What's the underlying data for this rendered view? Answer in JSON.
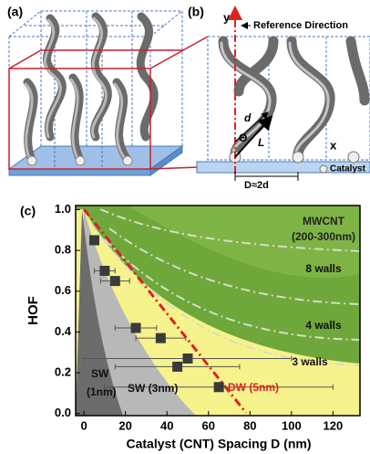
{
  "panel_a": "(a)",
  "panel_b": "(b)",
  "diagram_b": {
    "y_axis": "y",
    "reference": "Reference Direction",
    "d": "d",
    "theta": "Θ",
    "L": "L",
    "x_axis": "x",
    "catalyst": "Catalyst",
    "spacing": "D≈2d"
  },
  "chart_data": {
    "type": "scatter",
    "label": "(c)",
    "x_label": "Catalyst (CNT) Spacing D (nm)",
    "y_label": "HOF",
    "x": [
      5,
      10,
      15,
      25,
      37,
      50,
      45,
      65
    ],
    "values": [
      0.85,
      0.7,
      0.65,
      0.42,
      0.37,
      0.27,
      0.23,
      0.13
    ],
    "xerr": [
      2,
      5,
      7,
      10,
      12,
      50,
      30,
      55
    ],
    "color": "#3a3a3a",
    "xlim": [
      -4,
      133
    ],
    "ylim": [
      -0.01,
      1.02
    ],
    "xticks": [
      0,
      20,
      40,
      60,
      80,
      100,
      120
    ],
    "yticks": [
      {
        "value": 0,
        "label": "0.0"
      },
      0.2,
      0.4,
      0.6,
      0.8,
      {
        "value": 1,
        "label": "1.0"
      }
    ],
    "annotations": [
      "MWCNT",
      "(200-300nm)",
      "8 walls",
      "4 walls",
      "3 walls",
      "SW",
      "(1nm)",
      "SW (3nm)",
      "DW (5nm)"
    ]
  }
}
